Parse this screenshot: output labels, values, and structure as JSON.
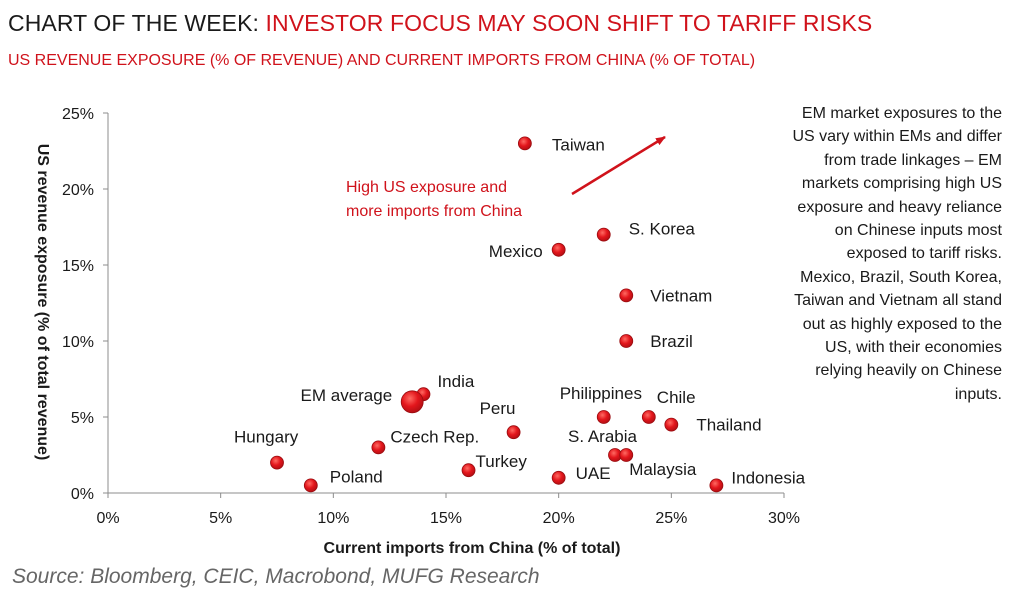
{
  "header": {
    "title_prefix": "CHART OF THE WEEK: ",
    "title_highlight": "INVESTOR FOCUS MAY SOON SHIFT TO TARIFF RISKS",
    "subtitle": "US REVENUE EXPOSURE (% OF REVENUE) AND CURRENT IMPORTS FROM CHINA (% OF TOTAL)"
  },
  "colors": {
    "accent": "#d0121b",
    "marker": "#e3161c",
    "text": "#1a1a1a",
    "source": "#666666"
  },
  "chart_data": {
    "type": "scatter",
    "xlabel": "Current imports from China (% of total)",
    "ylabel": "US revenue exposure (% of total revenue)",
    "xlim": [
      0,
      30
    ],
    "ylim": [
      0,
      25
    ],
    "xticks": [
      0,
      5,
      10,
      15,
      20,
      25,
      30
    ],
    "yticks": [
      0,
      5,
      10,
      15,
      20,
      25
    ],
    "xtick_labels": [
      "0%",
      "5%",
      "10%",
      "15%",
      "20%",
      "25%",
      "30%"
    ],
    "ytick_labels": [
      "0%",
      "5%",
      "10%",
      "15%",
      "20%",
      "25%"
    ],
    "grid": false,
    "points": [
      {
        "label": "Taiwan",
        "x": 18.5,
        "y": 23
      },
      {
        "label": "S. Korea",
        "x": 22,
        "y": 17
      },
      {
        "label": "Mexico",
        "x": 20,
        "y": 16
      },
      {
        "label": "Vietnam",
        "x": 23,
        "y": 13
      },
      {
        "label": "Brazil",
        "x": 23,
        "y": 10
      },
      {
        "label": "India",
        "x": 14,
        "y": 6.5
      },
      {
        "label": "EM average",
        "x": 13.5,
        "y": 6,
        "highlight": true
      },
      {
        "label": "Philippines",
        "x": 22,
        "y": 5
      },
      {
        "label": "Chile",
        "x": 24,
        "y": 5
      },
      {
        "label": "Thailand",
        "x": 25,
        "y": 4.5
      },
      {
        "label": "Peru",
        "x": 18,
        "y": 4
      },
      {
        "label": "Czech Rep.",
        "x": 12,
        "y": 3
      },
      {
        "label": "Hungary",
        "x": 7.5,
        "y": 2
      },
      {
        "label": "S. Arabia",
        "x": 22.5,
        "y": 2.5
      },
      {
        "label": "Malaysia",
        "x": 23,
        "y": 2.5
      },
      {
        "label": "Turkey",
        "x": 16,
        "y": 1.5
      },
      {
        "label": "UAE",
        "x": 20,
        "y": 1
      },
      {
        "label": "Poland",
        "x": 9,
        "y": 0.5
      },
      {
        "label": "Indonesia",
        "x": 27,
        "y": 0.5
      }
    ],
    "annotation": {
      "lines": [
        "High US exposure and",
        "more imports from China"
      ]
    }
  },
  "sidebar_note": "EM market exposures to the US vary within EMs and differ from trade linkages – EM markets comprising high US exposure and heavy reliance on Chinese inputs most exposed to tariff risks. Mexico, Brazil, South Korea, Taiwan and Vietnam all stand out as highly exposed to the US, with their economies relying heavily on Chinese inputs.",
  "source": "Source: Bloomberg, CEIC, Macrobond, MUFG Research"
}
